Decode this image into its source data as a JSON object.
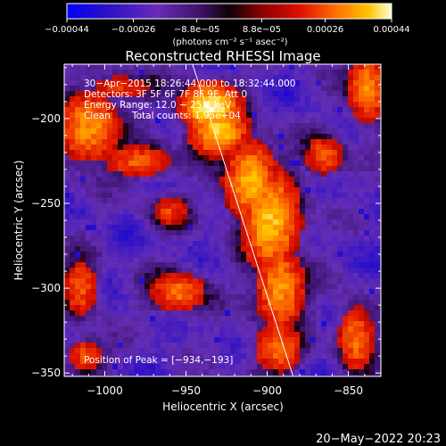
{
  "chart_data": {
    "type": "heatmap",
    "title": "Reconstructed RHESSI Image",
    "xlabel": "Heliocentric X (arcsec)",
    "ylabel": "Heliocentric Y (arcsec)",
    "xlim": [
      -1025,
      -830
    ],
    "ylim": [
      -352,
      -168
    ],
    "xticks": [
      -1000,
      -950,
      -900,
      -850
    ],
    "xtick_labels": [
      "−1000",
      "−950",
      "−900",
      "−850"
    ],
    "yticks": [
      -200,
      -250,
      -300,
      -350
    ],
    "ytick_labels": [
      "−200",
      "−250",
      "−300",
      "−350"
    ],
    "colorbar": {
      "range": [
        -0.00044,
        0.00044
      ],
      "tick_values": [
        -0.00044,
        -0.00026,
        -8.8e-05,
        8.8e-05,
        0.00026,
        0.00044
      ],
      "tick_labels": [
        "−0.00044",
        "−0.00026",
        "−8.8e−05",
        "8.8e−05",
        "0.00026",
        "0.00044"
      ],
      "unit_label": "(photons cm⁻² s⁻¹ asec⁻²)"
    },
    "annotations": {
      "time_range": "30−Apr−2015 18:26:44.000 to 18:32:44.000",
      "detectors": "Detectors: 3F 5F 6F 7F 8F 9F, Att 0",
      "energy_range": "Energy Range: 12.0 − 25.0 keV",
      "clean": "Clean",
      "total_counts": "Total counts: 1.95e+04",
      "peak": "Position of Peak = [−934,−193]"
    },
    "peak_position": [
      -934,
      -193
    ],
    "limb_line": [
      [
        -946,
        -168
      ],
      [
        -884,
        -352
      ]
    ],
    "emission_regions": [
      {
        "x": -935,
        "y": -193,
        "sx": 14,
        "sy": 10,
        "amp": 1.0
      },
      {
        "x": -930,
        "y": -207,
        "sx": 14,
        "sy": 12,
        "amp": 0.85
      },
      {
        "x": -910,
        "y": -237,
        "sx": 13,
        "sy": 18,
        "amp": 0.78
      },
      {
        "x": -898,
        "y": -260,
        "sx": 14,
        "sy": 24,
        "amp": 0.82
      },
      {
        "x": -892,
        "y": -300,
        "sx": 12,
        "sy": 20,
        "amp": 0.7
      },
      {
        "x": -893,
        "y": -335,
        "sx": 12,
        "sy": 12,
        "amp": 0.62
      },
      {
        "x": -845,
        "y": -330,
        "sx": 9,
        "sy": 16,
        "amp": 0.62
      },
      {
        "x": -838,
        "y": -182,
        "sx": 10,
        "sy": 16,
        "amp": 0.68
      },
      {
        "x": -865,
        "y": -222,
        "sx": 10,
        "sy": 10,
        "amp": 0.55
      },
      {
        "x": -1010,
        "y": -205,
        "sx": 16,
        "sy": 16,
        "amp": 0.7
      },
      {
        "x": -980,
        "y": -225,
        "sx": 18,
        "sy": 8,
        "amp": 0.55
      },
      {
        "x": -960,
        "y": -255,
        "sx": 10,
        "sy": 8,
        "amp": 0.5
      },
      {
        "x": -955,
        "y": -302,
        "sx": 14,
        "sy": 10,
        "amp": 0.62
      },
      {
        "x": -1015,
        "y": -300,
        "sx": 9,
        "sy": 14,
        "amp": 0.55
      },
      {
        "x": -1012,
        "y": -340,
        "sx": 10,
        "sy": 9,
        "amp": 0.5
      },
      {
        "x": -990,
        "y": -182,
        "sx": 18,
        "sy": 7,
        "amp": 0.45
      }
    ]
  },
  "footer": {
    "date": "20−May−2022 20:23"
  },
  "colors": {
    "background": "#000000",
    "text": "#ffffff",
    "colormap": [
      "#0000ff",
      "#3a0aa0",
      "#6a2ab8",
      "#4a1a8a",
      "#2a0a1a",
      "#8a0000",
      "#e01000",
      "#ff6a00",
      "#ffc000",
      "#ffffc8"
    ]
  }
}
